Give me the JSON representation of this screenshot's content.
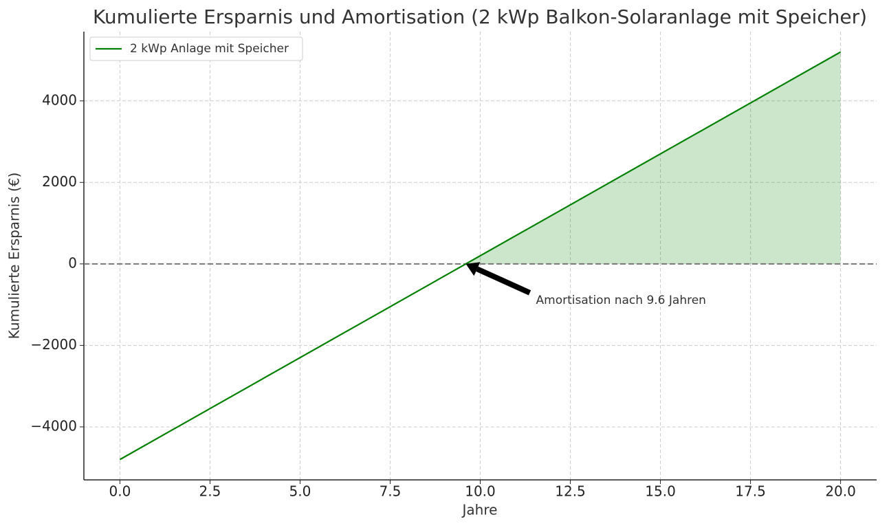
{
  "chart_data": {
    "type": "line",
    "title": "Kumulierte Ersparnis und Amortisation (2 kWp Balkon-Solaranlage mit Speicher)",
    "x_label": "Jahre",
    "y_label": "Kumulierte Ersparnis (€)",
    "x": [
      0,
      20
    ],
    "series": [
      {
        "name": "2 kWp Anlage mit Speicher",
        "color": "#008000",
        "values": [
          -4800,
          5200
        ]
      }
    ],
    "fill_positive": true,
    "annotation": "Amortisation nach 9.6 Jahren",
    "xlim": [
      -1,
      21
    ],
    "ylim": [
      -5300,
      5700
    ],
    "xticks": [
      {
        "value": 0,
        "label": "0.0"
      },
      {
        "value": 2.5,
        "label": "2.5"
      },
      {
        "value": 5,
        "label": "5.0"
      },
      {
        "value": 7.5,
        "label": "7.5"
      },
      {
        "value": 10,
        "label": "10.0"
      },
      {
        "value": 12.5,
        "label": "12.5"
      },
      {
        "value": 15,
        "label": "15.0"
      },
      {
        "value": 17.5,
        "label": "17.5"
      },
      {
        "value": 20,
        "label": "20.0"
      }
    ],
    "yticks": [
      {
        "value": -4000,
        "label": "−4000"
      },
      {
        "value": -2000,
        "label": "−2000"
      },
      0,
      2000,
      4000
    ],
    "grid": true,
    "legend": "upper-left"
  }
}
